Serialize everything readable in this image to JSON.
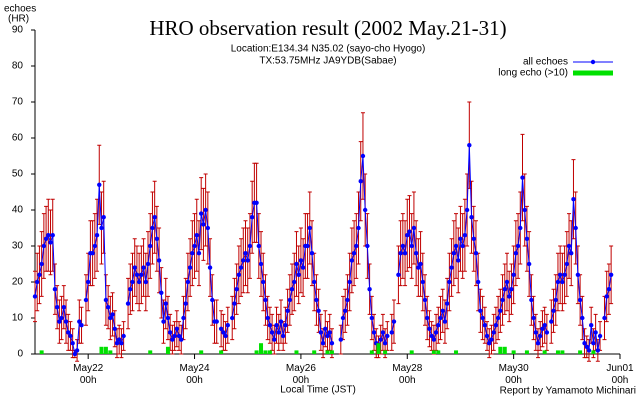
{
  "chart_data": {
    "type": "line",
    "title": "HRO observation result (2002 May.21-31)",
    "subtitle": [
      "Location:E134.34 N35.02 (sayo-cho Hyogo)",
      "TX:53.75MHz JA9YDB(Sabae)"
    ],
    "ylabel": "echoes",
    "yunit": "(HR)",
    "xlabel": "Local Time (JST)",
    "credit": "Report by Yamamoto Michinari",
    "legend": "top-right",
    "xlim": [
      0,
      264
    ],
    "ylim": [
      0,
      90
    ],
    "yticks": [
      0,
      10,
      20,
      30,
      40,
      50,
      60,
      70,
      80,
      90
    ],
    "xticks": [
      {
        "value": 24,
        "label": "May22 00h"
      },
      {
        "value": 72,
        "label": "May24 00h"
      },
      {
        "value": 120,
        "label": "May26 00h"
      },
      {
        "value": 168,
        "label": "May28 00h"
      },
      {
        "value": 216,
        "label": "May30 00h"
      },
      {
        "value": 264,
        "label": "Jun01 00h"
      }
    ],
    "x": [
      0,
      1,
      2,
      3,
      4,
      5,
      6,
      7,
      8,
      9,
      10,
      11,
      12,
      13,
      14,
      15,
      16,
      17,
      18,
      19,
      20,
      21,
      22,
      23,
      24,
      25,
      26,
      27,
      28,
      29,
      30,
      31,
      32,
      33,
      34,
      35,
      36,
      37,
      38,
      39,
      40,
      41,
      42,
      43,
      44,
      45,
      46,
      47,
      48,
      49,
      50,
      51,
      52,
      53,
      54,
      55,
      56,
      57,
      58,
      59,
      60,
      61,
      62,
      63,
      64,
      65,
      66,
      67,
      68,
      69,
      70,
      71,
      72,
      73,
      74,
      75,
      76,
      77,
      78,
      79,
      80,
      81,
      82,
      83,
      84,
      85,
      86,
      87,
      88,
      89,
      90,
      91,
      92,
      93,
      94,
      95,
      96,
      97,
      98,
      99,
      100,
      101,
      102,
      103,
      104,
      105,
      106,
      107,
      108,
      109,
      110,
      111,
      112,
      113,
      114,
      115,
      116,
      117,
      118,
      119,
      120,
      121,
      122,
      123,
      124,
      125,
      126,
      127,
      128,
      129,
      130,
      131,
      132,
      133,
      134,
      135,
      136,
      137,
      138,
      139,
      140,
      141,
      142,
      143,
      144,
      145,
      146,
      147,
      148,
      149,
      150,
      151,
      152,
      153,
      154,
      155,
      156,
      157,
      158,
      159,
      160,
      161,
      162,
      163,
      164,
      165,
      166,
      167,
      168,
      169,
      170,
      171,
      172,
      173,
      174,
      175,
      176,
      177,
      178,
      179,
      180,
      181,
      182,
      183,
      184,
      185,
      186,
      187,
      188,
      189,
      190,
      191,
      192,
      193,
      194,
      195,
      196,
      197,
      198,
      199,
      200,
      201,
      202,
      203,
      204,
      205,
      206,
      207,
      208,
      209,
      210,
      211,
      212,
      213,
      214,
      215,
      216,
      217,
      218,
      219,
      220,
      221,
      222,
      223,
      224,
      225,
      226,
      227,
      228,
      229,
      230,
      231,
      232,
      233,
      234,
      235,
      236,
      237,
      238,
      239,
      240,
      241,
      242,
      243,
      244,
      245,
      246,
      247,
      248,
      249,
      250,
      251,
      252,
      253,
      254,
      255,
      256,
      257,
      258,
      259,
      260,
      261,
      262,
      263
    ],
    "series": [
      {
        "name": "all echoes",
        "color": "#0000ff",
        "error_color": "#c00000",
        "values": [
          16,
          20,
          22,
          25,
          30,
          32,
          33,
          31,
          33,
          18,
          13,
          9,
          10,
          13,
          9,
          6,
          5,
          3,
          0,
          1,
          9,
          8,
          null,
          15,
          20,
          28,
          28,
          30,
          33,
          47,
          35,
          38,
          15,
          13,
          10,
          11,
          7,
          3,
          4,
          3,
          5,
          null,
          14,
          18,
          20,
          24,
          22,
          20,
          22,
          24,
          20,
          25,
          30,
          35,
          38,
          32,
          26,
          17,
          9,
          14,
          10,
          6,
          4,
          5,
          7,
          5,
          4,
          10,
          14,
          20,
          24,
          28,
          30,
          33,
          28,
          39,
          36,
          40,
          35,
          24,
          15,
          9,
          9,
          null,
          7,
          6,
          5,
          8,
          null,
          10,
          14,
          18,
          22,
          24,
          26,
          28,
          26,
          30,
          38,
          42,
          42,
          30,
          25,
          20,
          15,
          10,
          8,
          6,
          4,
          8,
          6,
          9,
          5,
          8,
          12,
          15,
          18,
          20,
          25,
          22,
          26,
          24,
          30,
          30,
          35,
          28,
          20,
          15,
          12,
          6,
          3,
          7,
          5,
          6,
          3,
          null,
          null,
          null,
          4,
          10,
          12,
          15,
          20,
          26,
          28,
          30,
          35,
          48,
          55,
          40,
          30,
          18,
          10,
          6,
          3,
          2,
          4,
          6,
          3,
          5,
          null,
          6,
          9,
          null,
          22,
          28,
          30,
          28,
          33,
          34,
          30,
          35,
          28,
          24,
          25,
          20,
          15,
          10,
          7,
          5,
          4,
          6,
          8,
          10,
          12,
          9,
          14,
          20,
          24,
          28,
          30,
          26,
          32,
          30,
          33,
          40,
          58,
          38,
          32,
          28,
          20,
          12,
          10,
          8,
          5,
          3,
          4,
          6,
          8,
          10,
          12,
          15,
          18,
          20,
          16,
          18,
          22,
          28,
          30,
          35,
          49,
          40,
          32,
          25,
          15,
          10,
          6,
          3,
          5,
          7,
          8,
          6,
          null,
          9,
          12,
          15,
          20,
          22,
          20,
          22,
          25,
          30,
          28,
          43,
          35,
          22,
          15,
          10,
          3,
          2,
          1,
          8,
          3,
          6,
          1,
          5,
          null,
          10,
          16,
          18,
          22,
          null,
          null,
          null
        ],
        "errors": [
          7,
          8,
          8,
          9,
          9,
          9,
          10,
          9,
          10,
          7,
          6,
          6,
          6,
          6,
          6,
          5,
          4,
          4,
          1,
          3,
          6,
          5,
          null,
          7,
          8,
          9,
          9,
          9,
          10,
          11,
          10,
          10,
          7,
          6,
          6,
          6,
          5,
          4,
          4,
          4,
          4,
          null,
          7,
          7,
          8,
          8,
          8,
          8,
          8,
          8,
          8,
          9,
          9,
          10,
          10,
          9,
          9,
          7,
          6,
          7,
          6,
          5,
          4,
          4,
          5,
          4,
          4,
          6,
          7,
          8,
          8,
          9,
          9,
          10,
          9,
          10,
          10,
          10,
          10,
          8,
          7,
          6,
          6,
          null,
          5,
          5,
          4,
          5,
          null,
          6,
          7,
          7,
          8,
          8,
          9,
          9,
          9,
          9,
          10,
          11,
          11,
          9,
          9,
          8,
          7,
          6,
          5,
          5,
          4,
          5,
          5,
          6,
          4,
          5,
          6,
          7,
          7,
          8,
          9,
          8,
          9,
          8,
          9,
          9,
          10,
          9,
          8,
          7,
          6,
          5,
          4,
          5,
          4,
          5,
          4,
          null,
          null,
          null,
          4,
          6,
          6,
          7,
          8,
          9,
          9,
          9,
          10,
          11,
          12,
          10,
          9,
          7,
          6,
          5,
          4,
          3,
          4,
          5,
          4,
          4,
          null,
          5,
          6,
          null,
          8,
          9,
          9,
          9,
          10,
          10,
          9,
          10,
          9,
          8,
          9,
          8,
          7,
          6,
          5,
          4,
          4,
          5,
          5,
          6,
          6,
          6,
          7,
          8,
          8,
          9,
          9,
          9,
          9,
          9,
          10,
          10,
          12,
          10,
          9,
          9,
          8,
          6,
          6,
          5,
          4,
          4,
          4,
          5,
          5,
          6,
          6,
          7,
          7,
          8,
          7,
          7,
          8,
          9,
          9,
          10,
          12,
          10,
          9,
          9,
          7,
          6,
          5,
          4,
          4,
          5,
          5,
          5,
          null,
          6,
          6,
          7,
          8,
          8,
          8,
          8,
          9,
          9,
          9,
          11,
          10,
          8,
          7,
          6,
          4,
          3,
          3,
          5,
          4,
          5,
          3,
          4,
          null,
          6,
          7,
          7,
          8,
          null,
          null,
          null
        ]
      },
      {
        "name": "long echo (>10)",
        "color": "#00e000",
        "type": "bar",
        "x": [
          3,
          30,
          32,
          34,
          52,
          60,
          75,
          84,
          100,
          102,
          104,
          106,
          118,
          126,
          132,
          134,
          152,
          155,
          158,
          170,
          180,
          182,
          190,
          210,
          212,
          216,
          222,
          230,
          236,
          238,
          246,
          252
        ],
        "values": [
          1,
          2,
          2,
          1,
          1,
          2,
          1,
          1,
          1,
          3,
          1,
          1,
          1,
          1,
          1,
          1,
          1,
          3,
          1,
          1,
          1,
          1,
          1,
          2,
          2,
          1,
          1,
          1,
          1,
          1,
          1,
          1
        ]
      }
    ]
  }
}
